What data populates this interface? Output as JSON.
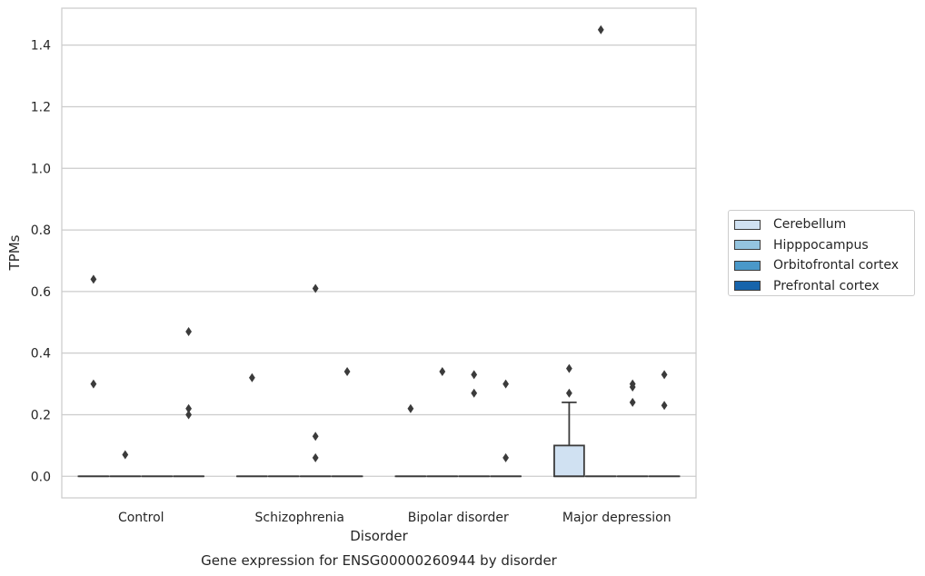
{
  "chart_data": {
    "type": "box",
    "title": "Gene expression for ENSG00000260944 by disorder",
    "xlabel": "Disorder",
    "ylabel": "TPMs",
    "ylim": [
      -0.07,
      1.52
    ],
    "yticks": [
      0.0,
      0.2,
      0.4,
      0.6,
      0.8,
      1.0,
      1.2,
      1.4
    ],
    "ytick_labels": [
      "0.0",
      "0.2",
      "0.4",
      "0.6",
      "0.8",
      "1.0",
      "1.2",
      "1.4"
    ],
    "categories": [
      "Control",
      "Schizophrenia",
      "Bipolar disorder",
      "Major depression"
    ],
    "grid": "horizontal",
    "legend_placement": "outside-right",
    "series": [
      {
        "name": "Cerebellum",
        "color": "#d0e1f2",
        "boxes": [
          {
            "q1": 0,
            "median": 0,
            "q3": 0,
            "whisker_low": 0,
            "whisker_high": 0,
            "outliers": [
              0.64,
              0.3
            ]
          },
          {
            "q1": 0,
            "median": 0,
            "q3": 0,
            "whisker_low": 0,
            "whisker_high": 0,
            "outliers": [
              0.32
            ]
          },
          {
            "q1": 0,
            "median": 0,
            "q3": 0,
            "whisker_low": 0,
            "whisker_high": 0,
            "outliers": [
              0.22
            ]
          },
          {
            "q1": 0,
            "median": 0,
            "q3": 0.1,
            "whisker_low": 0,
            "whisker_high": 0.24,
            "outliers": [
              0.35,
              0.27
            ]
          }
        ]
      },
      {
        "name": "Hipppocampus",
        "color": "#94c4df",
        "boxes": [
          {
            "q1": 0,
            "median": 0,
            "q3": 0,
            "whisker_low": 0,
            "whisker_high": 0,
            "outliers": [
              0.07
            ]
          },
          {
            "q1": 0,
            "median": 0,
            "q3": 0,
            "whisker_low": 0,
            "whisker_high": 0,
            "outliers": []
          },
          {
            "q1": 0,
            "median": 0,
            "q3": 0,
            "whisker_low": 0,
            "whisker_high": 0,
            "outliers": [
              0.34
            ]
          },
          {
            "q1": 0,
            "median": 0,
            "q3": 0,
            "whisker_low": 0,
            "whisker_high": 0,
            "outliers": [
              1.45
            ]
          }
        ]
      },
      {
        "name": "Orbitofrontal cortex",
        "color": "#4a98c9",
        "boxes": [
          {
            "q1": 0,
            "median": 0,
            "q3": 0,
            "whisker_low": 0,
            "whisker_high": 0,
            "outliers": []
          },
          {
            "q1": 0,
            "median": 0,
            "q3": 0,
            "whisker_low": 0,
            "whisker_high": 0,
            "outliers": [
              0.61,
              0.13,
              0.06
            ]
          },
          {
            "q1": 0,
            "median": 0,
            "q3": 0,
            "whisker_low": 0,
            "whisker_high": 0,
            "outliers": [
              0.33,
              0.27
            ]
          },
          {
            "q1": 0,
            "median": 0,
            "q3": 0,
            "whisker_low": 0,
            "whisker_high": 0,
            "outliers": [
              0.3,
              0.29,
              0.24
            ]
          }
        ]
      },
      {
        "name": "Prefrontal cortex",
        "color": "#1764ab",
        "boxes": [
          {
            "q1": 0,
            "median": 0,
            "q3": 0,
            "whisker_low": 0,
            "whisker_high": 0,
            "outliers": [
              0.47,
              0.22,
              0.2
            ]
          },
          {
            "q1": 0,
            "median": 0,
            "q3": 0,
            "whisker_low": 0,
            "whisker_high": 0,
            "outliers": [
              0.34
            ]
          },
          {
            "q1": 0,
            "median": 0,
            "q3": 0,
            "whisker_low": 0,
            "whisker_high": 0,
            "outliers": [
              0.3,
              0.06
            ]
          },
          {
            "q1": 0,
            "median": 0,
            "q3": 0,
            "whisker_low": 0,
            "whisker_high": 0,
            "outliers": [
              0.33,
              0.23
            ]
          }
        ]
      }
    ]
  }
}
